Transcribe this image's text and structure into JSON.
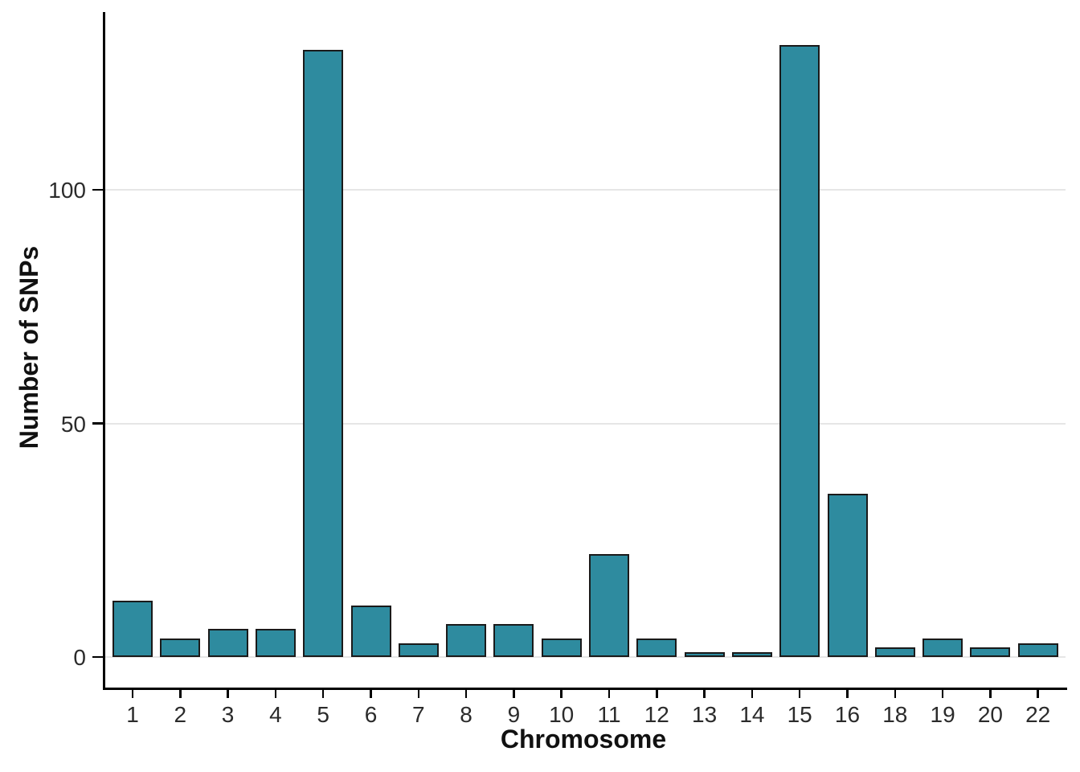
{
  "chart_data": {
    "type": "bar",
    "title": "",
    "xlabel": "Chromosome",
    "ylabel": "Number of SNPs",
    "categories": [
      "1",
      "2",
      "3",
      "4",
      "5",
      "6",
      "7",
      "8",
      "9",
      "10",
      "11",
      "12",
      "13",
      "14",
      "15",
      "16",
      "18",
      "19",
      "20",
      "22"
    ],
    "values": [
      12,
      4,
      6,
      6,
      130,
      11,
      3,
      7,
      7,
      4,
      22,
      4,
      1,
      1,
      131,
      35,
      2,
      4,
      2,
      3
    ],
    "y_ticks": [
      {
        "value": 0,
        "label": "0"
      },
      {
        "value": 50,
        "label": "50"
      },
      {
        "value": 100,
        "label": "100"
      }
    ],
    "ylim": [
      0,
      138
    ],
    "grid": "horizontal-major-only",
    "legend": "none",
    "colors": {
      "bar_fill": "#2e8b9f",
      "bar_border": "#1a1a1a",
      "gridline": "#e6e6e6",
      "axis": "#000000",
      "tick_text": "#2b2b2b",
      "title_text": "#111111"
    }
  }
}
